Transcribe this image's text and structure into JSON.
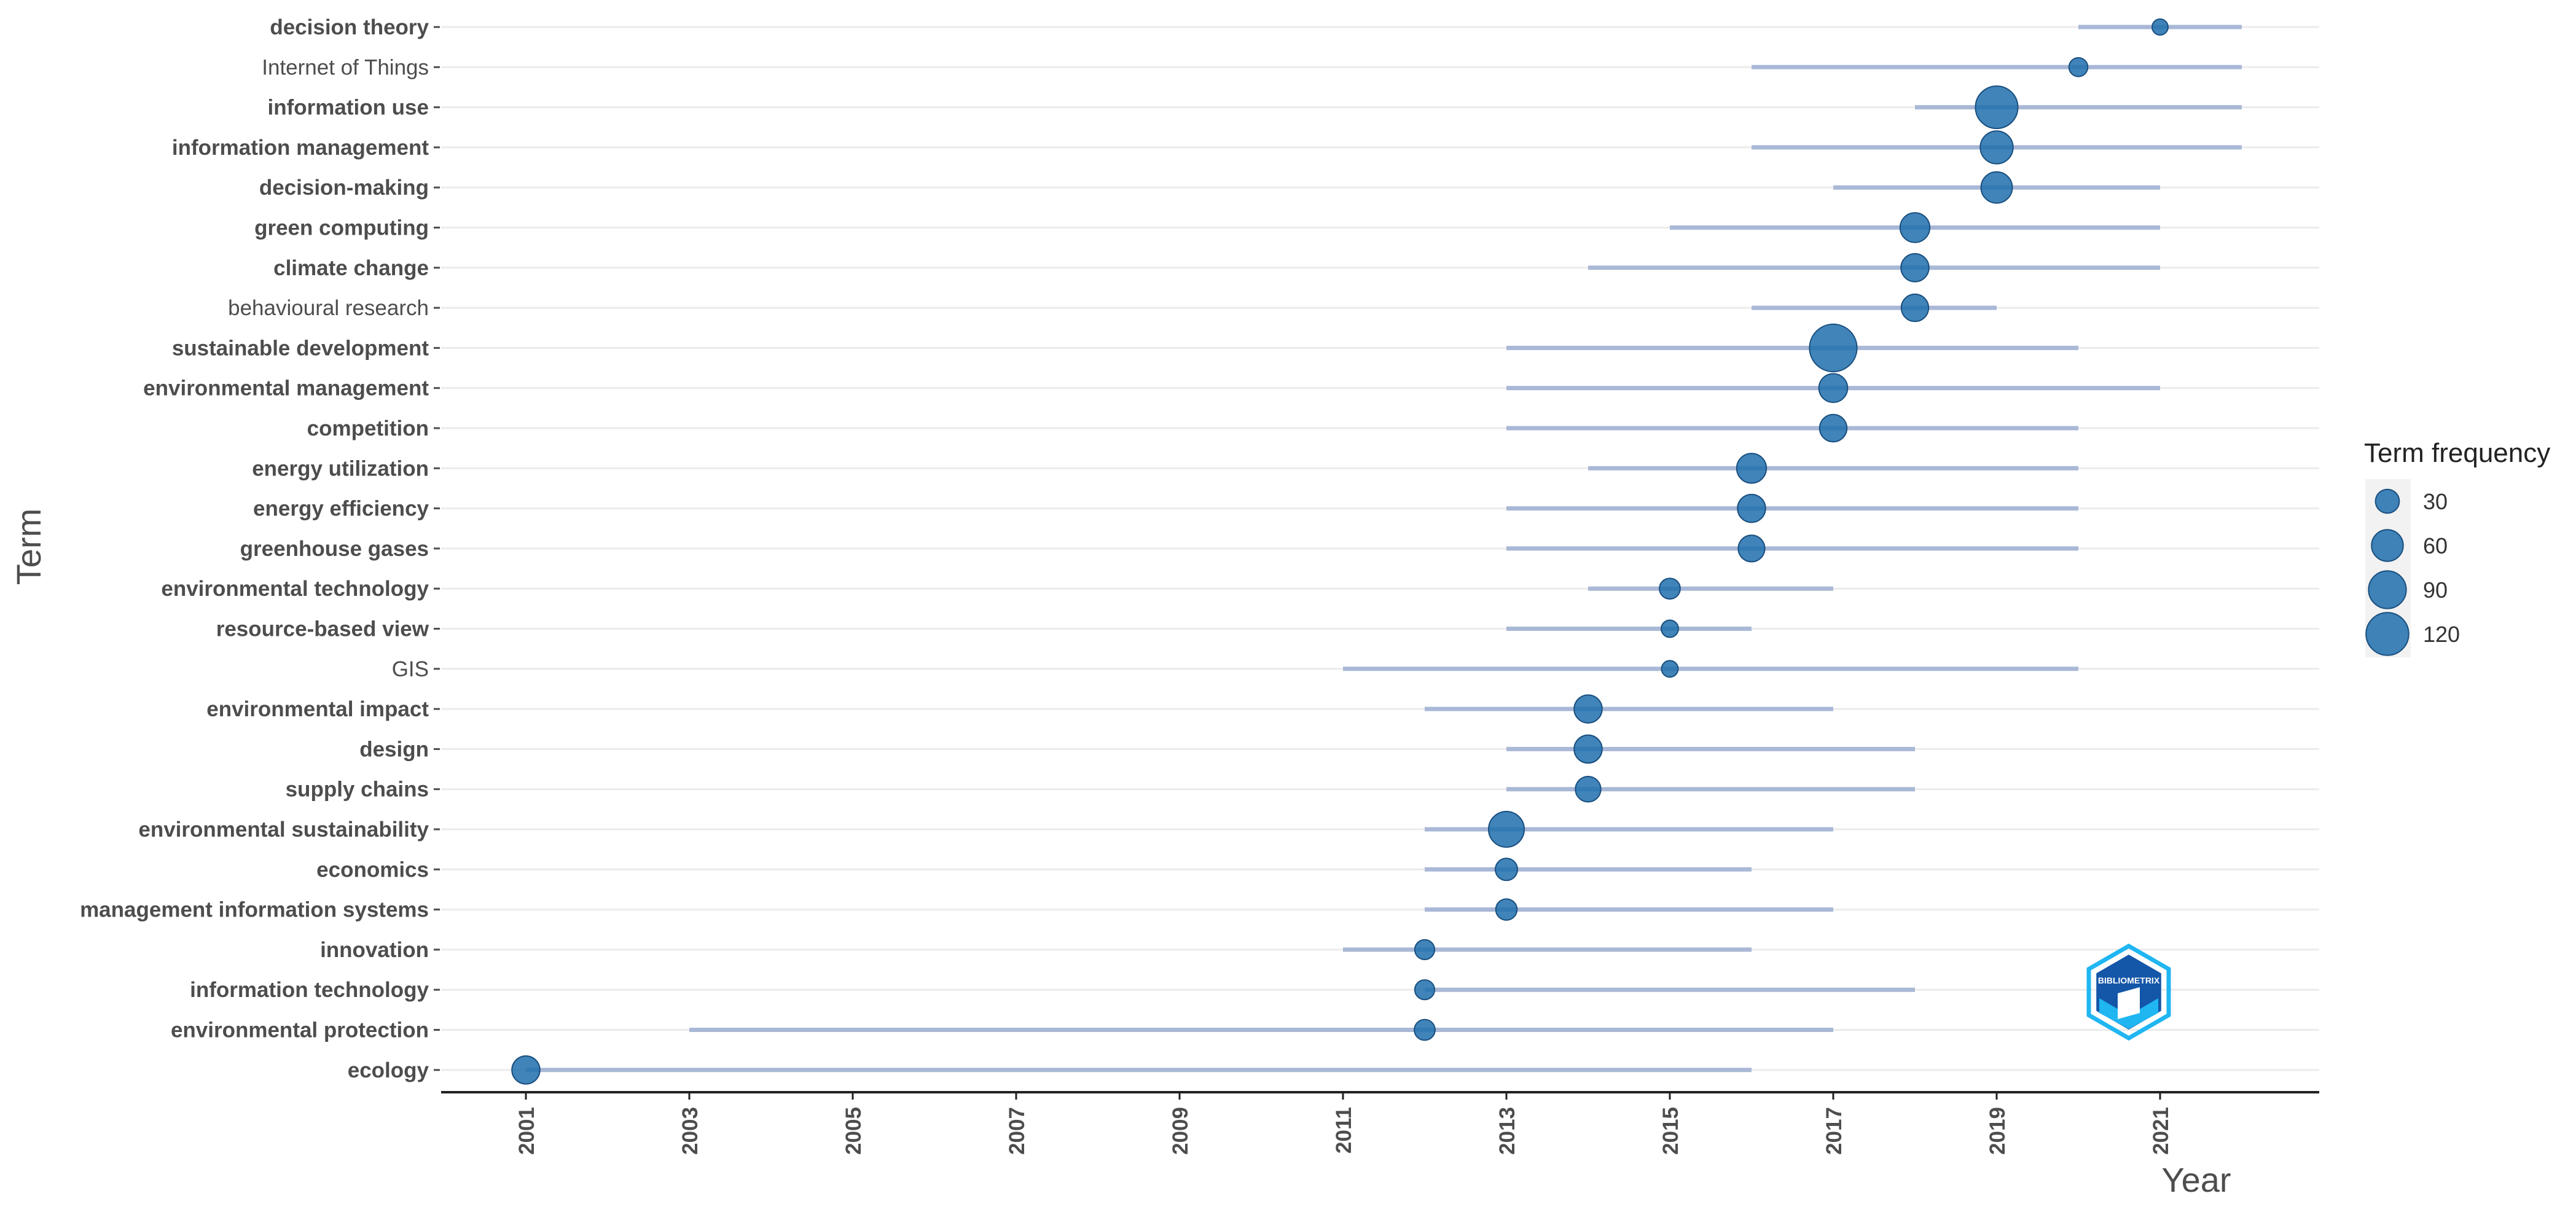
{
  "chart_data": {
    "type": "scatter",
    "subtype": "trend-topics-range",
    "title": "",
    "xlabel": "Year",
    "ylabel": "Term",
    "xlim": [
      2000.2,
      2023.2
    ],
    "x_ticks": [
      2001,
      2003,
      2005,
      2007,
      2009,
      2011,
      2013,
      2015,
      2017,
      2019,
      2021
    ],
    "legend": {
      "title": "Term frequency",
      "placement": "right",
      "entries": [
        {
          "label": "30",
          "value": 30
        },
        {
          "label": "60",
          "value": 60
        },
        {
          "label": "90",
          "value": 90
        },
        {
          "label": "120",
          "value": 120
        }
      ]
    },
    "colors": {
      "point": "#1f6fad",
      "point_stroke": "#1a4f7f",
      "segment": "#a9b8d6",
      "grid": "#ebebeb",
      "axis": "#222222",
      "legend_bg": "#f2f2f2",
      "logo_dark": "#1456a8",
      "logo_light": "#1fb6f2"
    },
    "terms": [
      {
        "term": "decision theory",
        "q1": 2020,
        "median": 2021,
        "q3": 2022,
        "freq": 13,
        "bold": true
      },
      {
        "term": "Internet of Things",
        "q1": 2016,
        "median": 2020,
        "q3": 2022,
        "freq": 18,
        "bold": false
      },
      {
        "term": "information use",
        "q1": 2018,
        "median": 2019,
        "q3": 2022,
        "freq": 92,
        "bold": true
      },
      {
        "term": "information management",
        "q1": 2016,
        "median": 2019,
        "q3": 2022,
        "freq": 55,
        "bold": true
      },
      {
        "term": "decision-making",
        "q1": 2017,
        "median": 2019,
        "q3": 2021,
        "freq": 50,
        "bold": true
      },
      {
        "term": "green computing",
        "q1": 2015,
        "median": 2018,
        "q3": 2021,
        "freq": 45,
        "bold": true
      },
      {
        "term": "climate change",
        "q1": 2014,
        "median": 2018,
        "q3": 2021,
        "freq": 40,
        "bold": true
      },
      {
        "term": "behavioural research",
        "q1": 2016,
        "median": 2018,
        "q3": 2019,
        "freq": 38,
        "bold": false
      },
      {
        "term": "sustainable development",
        "q1": 2013,
        "median": 2017,
        "q3": 2020,
        "freq": 115,
        "bold": true
      },
      {
        "term": "environmental management",
        "q1": 2013,
        "median": 2017,
        "q3": 2021,
        "freq": 42,
        "bold": true
      },
      {
        "term": "competition",
        "q1": 2013,
        "median": 2017,
        "q3": 2020,
        "freq": 38,
        "bold": true
      },
      {
        "term": "energy utilization",
        "q1": 2014,
        "median": 2016,
        "q3": 2020,
        "freq": 45,
        "bold": true
      },
      {
        "term": "energy efficiency",
        "q1": 2013,
        "median": 2016,
        "q3": 2020,
        "freq": 40,
        "bold": true
      },
      {
        "term": "greenhouse gases",
        "q1": 2013,
        "median": 2016,
        "q3": 2020,
        "freq": 36,
        "bold": true
      },
      {
        "term": "environmental technology",
        "q1": 2014,
        "median": 2015,
        "q3": 2017,
        "freq": 22,
        "bold": true
      },
      {
        "term": "resource-based view",
        "q1": 2013,
        "median": 2015,
        "q3": 2016,
        "freq": 15,
        "bold": true
      },
      {
        "term": "GIS",
        "q1": 2011,
        "median": 2015,
        "q3": 2020,
        "freq": 14,
        "bold": false
      },
      {
        "term": "environmental impact",
        "q1": 2012,
        "median": 2014,
        "q3": 2017,
        "freq": 40,
        "bold": true
      },
      {
        "term": "design",
        "q1": 2013,
        "median": 2014,
        "q3": 2018,
        "freq": 40,
        "bold": true
      },
      {
        "term": "supply chains",
        "q1": 2013,
        "median": 2014,
        "q3": 2018,
        "freq": 33,
        "bold": true
      },
      {
        "term": "environmental sustainability",
        "q1": 2012,
        "median": 2013,
        "q3": 2017,
        "freq": 65,
        "bold": true
      },
      {
        "term": "economics",
        "q1": 2012,
        "median": 2013,
        "q3": 2016,
        "freq": 25,
        "bold": true
      },
      {
        "term": "management information systems",
        "q1": 2012,
        "median": 2013,
        "q3": 2017,
        "freq": 23,
        "bold": true
      },
      {
        "term": "innovation",
        "q1": 2011,
        "median": 2012,
        "q3": 2016,
        "freq": 20,
        "bold": true
      },
      {
        "term": "information technology",
        "q1": 2012,
        "median": 2012,
        "q3": 2018,
        "freq": 20,
        "bold": true
      },
      {
        "term": "environmental protection",
        "q1": 2003,
        "median": 2012,
        "q3": 2017,
        "freq": 22,
        "bold": true
      },
      {
        "term": "ecology",
        "q1": 2001,
        "median": 2001,
        "q3": 2016,
        "freq": 40,
        "bold": true
      }
    ],
    "watermark": {
      "text": "BIBLIOMETRIX"
    }
  }
}
